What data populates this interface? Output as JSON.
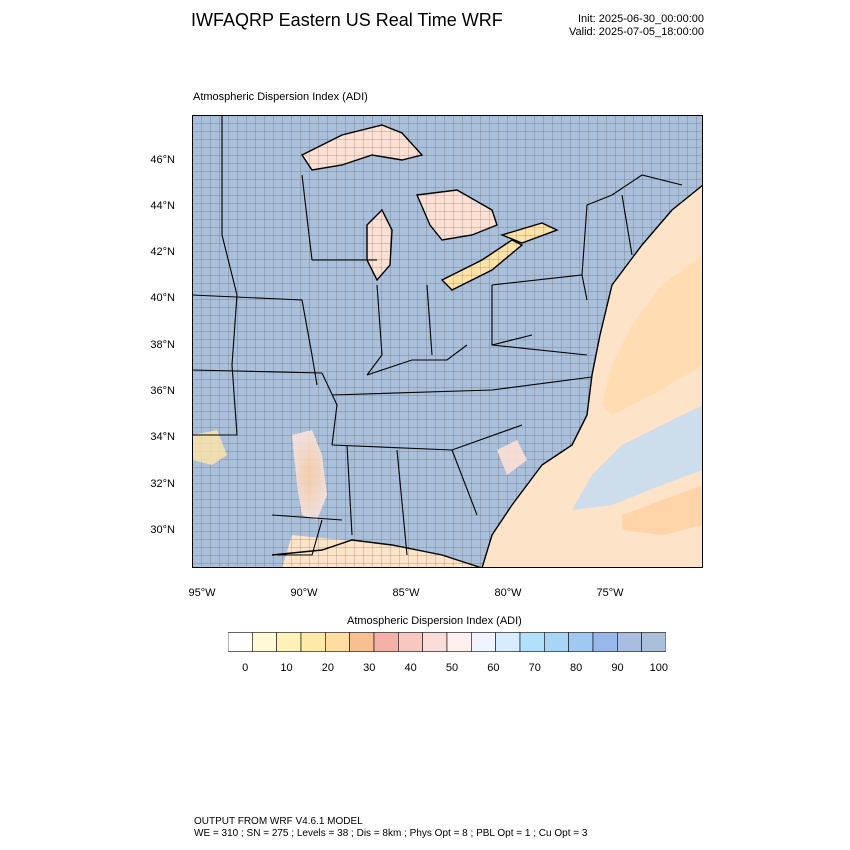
{
  "header": {
    "title": "IWFAQRP Eastern US Real Time WRF",
    "init": "Init: 2025-06-30_00:00:00",
    "valid": "Valid: 2025-07-05_18:00:00"
  },
  "plot": {
    "title": "Atmospheric Dispersion Index   (ADI)",
    "lat_labels": [
      "46°N",
      "44°N",
      "42°N",
      "40°N",
      "38°N",
      "36°N",
      "34°N",
      "32°N",
      "30°N"
    ],
    "lon_labels": [
      "95°W",
      "90°W",
      "85°W",
      "80°W",
      "75°W"
    ]
  },
  "colorbar": {
    "title": "Atmospheric Dispersion Index (ADI)",
    "labels": [
      "0",
      "10",
      "20",
      "30",
      "40",
      "50",
      "60",
      "70",
      "80",
      "90",
      "100"
    ],
    "colors": [
      "#ffffff",
      "#fff9d6",
      "#fff2b8",
      "#ffe9a8",
      "#ffdda0",
      "#f8c090",
      "#f5b0a8",
      "#f8c8c0",
      "#fadcd8",
      "#fff0f0",
      "#f0f4ff",
      "#d8ecff",
      "#b0e0fa",
      "#a8d4f5",
      "#a0c8f0",
      "#98b8ec",
      "#a8bde0",
      "#aabfd9"
    ],
    "land_color": "#aabfd9",
    "water_color": "#aabfd9",
    "low_color": "#fad0b8"
  },
  "footer": {
    "line1": "OUTPUT FROM WRF V4.6.1 MODEL",
    "line2": "WE = 310 ; SN = 275 ; Levels = 38 ; Dis = 8km ; Phys Opt = 8 ; PBL Opt = 1 ; Cu Opt = 3"
  }
}
